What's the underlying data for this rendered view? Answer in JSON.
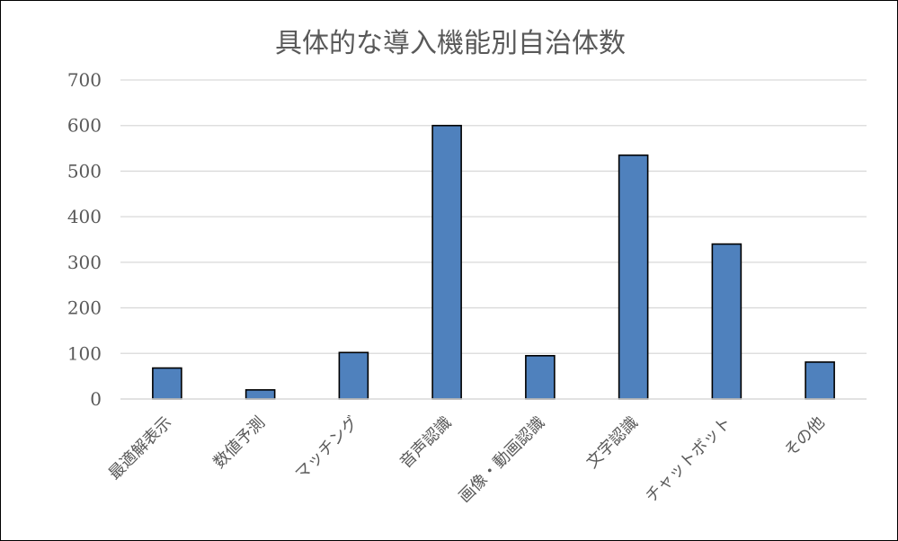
{
  "chart_data": {
    "type": "bar",
    "title": "具体的な導入機能別自治体数",
    "xlabel": "",
    "ylabel": "",
    "categories": [
      "最適解表示",
      "数値予測",
      "マッチング",
      "音声認識",
      "画像・動画認識",
      "文字認識",
      "チャットボット",
      "その他"
    ],
    "series": [
      {
        "values": [
          68,
          20,
          102,
          600,
          95,
          535,
          340,
          81
        ]
      }
    ],
    "ylim": [
      0,
      700
    ],
    "yticks": [
      0,
      100,
      200,
      300,
      400,
      500,
      600,
      700
    ],
    "grid": true,
    "legend": "none",
    "bar_color": "#4f81bd",
    "bar_edge_color": "#000000",
    "grid_color": "#d9d9d9"
  }
}
